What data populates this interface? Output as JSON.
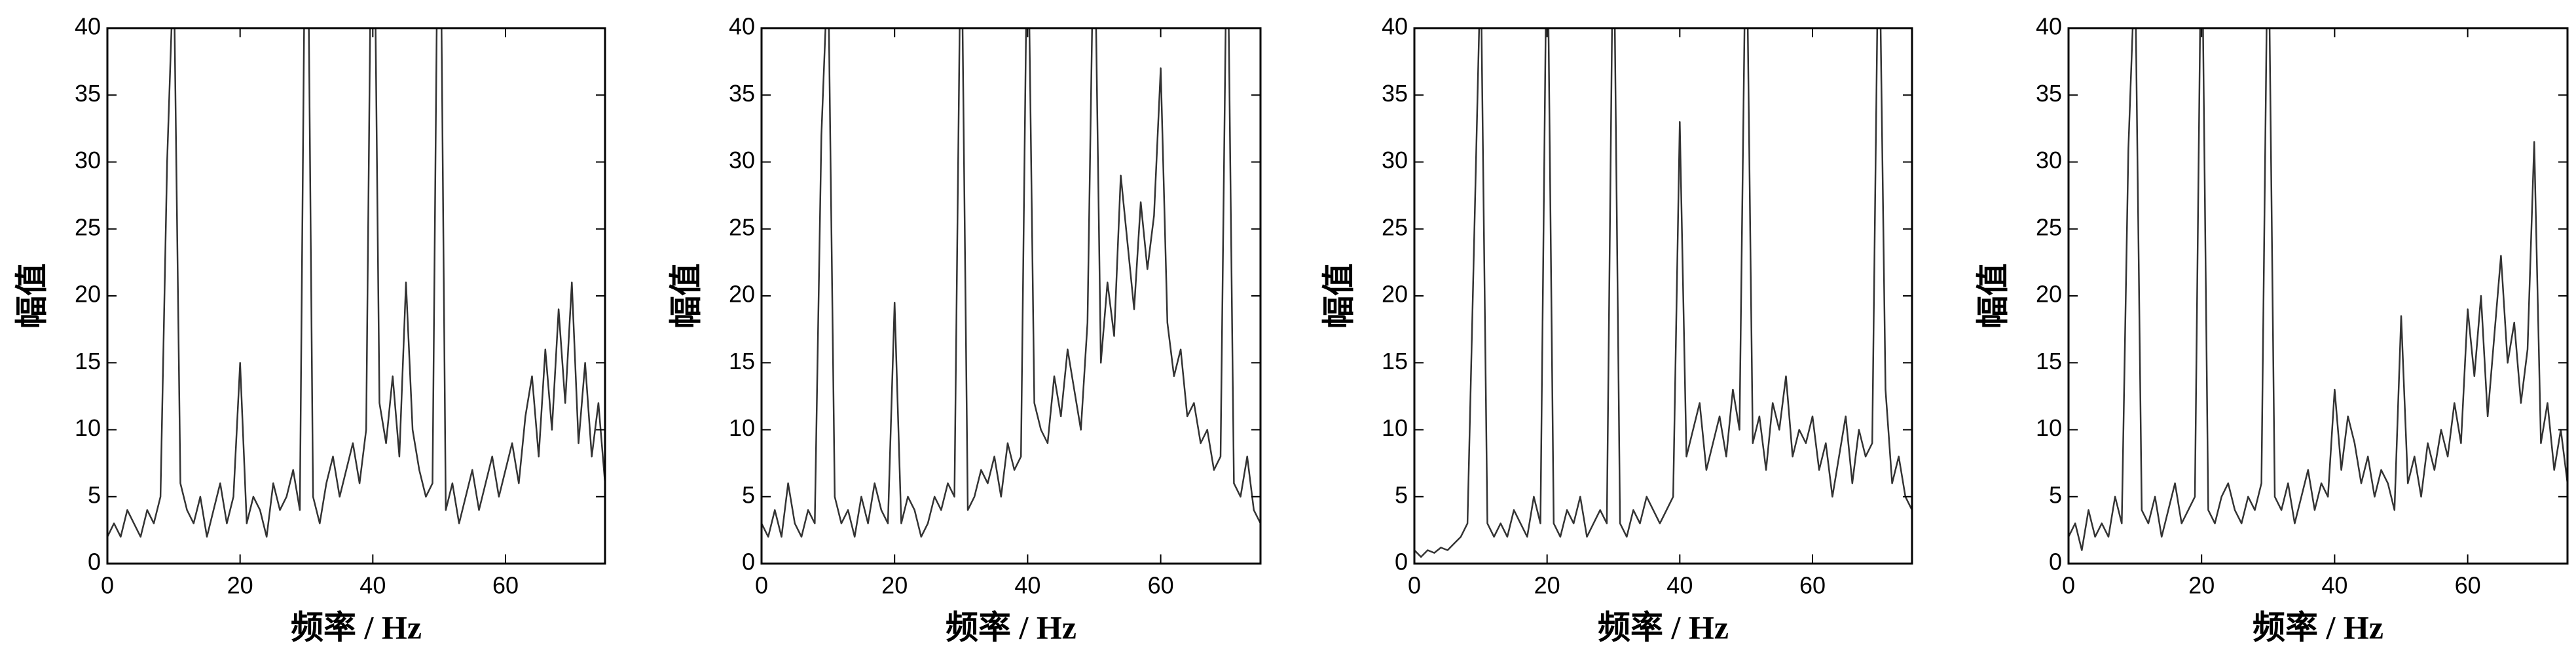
{
  "chart_data": [
    {
      "type": "line",
      "xlabel": "频率 / Hz",
      "ylabel": "幅值",
      "xlim": [
        0,
        75
      ],
      "ylim": [
        0,
        40
      ],
      "xticks": [
        0,
        20,
        40,
        60
      ],
      "yticks": [
        0,
        5,
        10,
        15,
        20,
        25,
        30,
        35,
        40
      ],
      "x": [
        0,
        1,
        2,
        3,
        4,
        5,
        6,
        7,
        8,
        9,
        10,
        11,
        12,
        13,
        14,
        15,
        16,
        17,
        18,
        19,
        20,
        21,
        22,
        23,
        24,
        25,
        26,
        27,
        28,
        29,
        30,
        31,
        32,
        33,
        34,
        35,
        36,
        37,
        38,
        39,
        40,
        41,
        42,
        43,
        44,
        45,
        46,
        47,
        48,
        49,
        50,
        51,
        52,
        53,
        54,
        55,
        56,
        57,
        58,
        59,
        60,
        61,
        62,
        63,
        64,
        65,
        66,
        67,
        68,
        69,
        70,
        71,
        72,
        73,
        74,
        75
      ],
      "series": [
        {
          "color": "#333333",
          "values": [
            2,
            3,
            2,
            4,
            3,
            2,
            4,
            3,
            5,
            30,
            45,
            6,
            4,
            3,
            5,
            2,
            4,
            6,
            3,
            5,
            15,
            3,
            5,
            4,
            2,
            6,
            4,
            5,
            7,
            4,
            60,
            5,
            3,
            6,
            8,
            5,
            7,
            9,
            6,
            10,
            60,
            12,
            9,
            14,
            8,
            21,
            10,
            7,
            5,
            6,
            60,
            4,
            6,
            3,
            5,
            7,
            4,
            6,
            8,
            5,
            7,
            9,
            6,
            11,
            14,
            8,
            16,
            10,
            19,
            12,
            21,
            9,
            15,
            8,
            12,
            6
          ]
        }
      ]
    },
    {
      "type": "line",
      "xlabel": "频率 / Hz",
      "ylabel": "幅值",
      "xlim": [
        0,
        75
      ],
      "ylim": [
        0,
        40
      ],
      "xticks": [
        0,
        20,
        40,
        60
      ],
      "yticks": [
        0,
        5,
        10,
        15,
        20,
        25,
        30,
        35,
        40
      ],
      "x": [
        0,
        1,
        2,
        3,
        4,
        5,
        6,
        7,
        8,
        9,
        10,
        11,
        12,
        13,
        14,
        15,
        16,
        17,
        18,
        19,
        20,
        21,
        22,
        23,
        24,
        25,
        26,
        27,
        28,
        29,
        30,
        31,
        32,
        33,
        34,
        35,
        36,
        37,
        38,
        39,
        40,
        41,
        42,
        43,
        44,
        45,
        46,
        47,
        48,
        49,
        50,
        51,
        52,
        53,
        54,
        55,
        56,
        57,
        58,
        59,
        60,
        61,
        62,
        63,
        64,
        65,
        66,
        67,
        68,
        69,
        70,
        71,
        72,
        73,
        74,
        75
      ],
      "series": [
        {
          "color": "#333333",
          "values": [
            3,
            2,
            4,
            2,
            6,
            3,
            2,
            4,
            3,
            32,
            45,
            5,
            3,
            4,
            2,
            5,
            3,
            6,
            4,
            3,
            19.5,
            3,
            5,
            4,
            2,
            3,
            5,
            4,
            6,
            5,
            50,
            4,
            5,
            7,
            6,
            8,
            5,
            9,
            7,
            8,
            50,
            12,
            10,
            9,
            14,
            11,
            16,
            13,
            10,
            18,
            50,
            15,
            21,
            17,
            29,
            24,
            19,
            27,
            22,
            26,
            37,
            18,
            14,
            16,
            11,
            12,
            9,
            10,
            7,
            8,
            50,
            6,
            5,
            8,
            4,
            3
          ]
        }
      ]
    },
    {
      "type": "line",
      "xlabel": "频率 / Hz",
      "ylabel": "幅值",
      "xlim": [
        0,
        75
      ],
      "ylim": [
        0,
        40
      ],
      "xticks": [
        0,
        20,
        40,
        60
      ],
      "yticks": [
        0,
        5,
        10,
        15,
        20,
        25,
        30,
        35,
        40
      ],
      "x": [
        0,
        1,
        2,
        3,
        4,
        5,
        6,
        7,
        8,
        9,
        10,
        11,
        12,
        13,
        14,
        15,
        16,
        17,
        18,
        19,
        20,
        21,
        22,
        23,
        24,
        25,
        26,
        27,
        28,
        29,
        30,
        31,
        32,
        33,
        34,
        35,
        36,
        37,
        38,
        39,
        40,
        41,
        42,
        43,
        44,
        45,
        46,
        47,
        48,
        49,
        50,
        51,
        52,
        53,
        54,
        55,
        56,
        57,
        58,
        59,
        60,
        61,
        62,
        63,
        64,
        65,
        66,
        67,
        68,
        69,
        70,
        71,
        72,
        73,
        74,
        75
      ],
      "series": [
        {
          "color": "#333333",
          "values": [
            1,
            0.5,
            1,
            0.8,
            1.2,
            1,
            1.5,
            2,
            3,
            24,
            45,
            3,
            2,
            3,
            2,
            4,
            3,
            2,
            5,
            3,
            50,
            3,
            2,
            4,
            3,
            5,
            2,
            3,
            4,
            3,
            50,
            3,
            2,
            4,
            3,
            5,
            4,
            3,
            4,
            5,
            33,
            8,
            10,
            12,
            7,
            9,
            11,
            8,
            13,
            10,
            50,
            9,
            11,
            7,
            12,
            10,
            14,
            8,
            10,
            9,
            11,
            7,
            9,
            5,
            8,
            11,
            6,
            10,
            8,
            9,
            50,
            13,
            6,
            8,
            5,
            4
          ]
        }
      ]
    },
    {
      "type": "line",
      "xlabel": "频率 / Hz",
      "ylabel": "幅值",
      "xlim": [
        0,
        75
      ],
      "ylim": [
        0,
        40
      ],
      "xticks": [
        0,
        20,
        40,
        60
      ],
      "yticks": [
        0,
        5,
        10,
        15,
        20,
        25,
        30,
        35,
        40
      ],
      "x": [
        0,
        1,
        2,
        3,
        4,
        5,
        6,
        7,
        8,
        9,
        10,
        11,
        12,
        13,
        14,
        15,
        16,
        17,
        18,
        19,
        20,
        21,
        22,
        23,
        24,
        25,
        26,
        27,
        28,
        29,
        30,
        31,
        32,
        33,
        34,
        35,
        36,
        37,
        38,
        39,
        40,
        41,
        42,
        43,
        44,
        45,
        46,
        47,
        48,
        49,
        50,
        51,
        52,
        53,
        54,
        55,
        56,
        57,
        58,
        59,
        60,
        61,
        62,
        63,
        64,
        65,
        66,
        67,
        68,
        69,
        70,
        71,
        72,
        73,
        74,
        75
      ],
      "series": [
        {
          "color": "#333333",
          "values": [
            2,
            3,
            1,
            4,
            2,
            3,
            2,
            5,
            3,
            31,
            45,
            4,
            3,
            5,
            2,
            4,
            6,
            3,
            4,
            5,
            50,
            4,
            3,
            5,
            6,
            4,
            3,
            5,
            4,
            6,
            50,
            5,
            4,
            6,
            3,
            5,
            7,
            4,
            6,
            5,
            13,
            7,
            11,
            9,
            6,
            8,
            5,
            7,
            6,
            4,
            18.5,
            6,
            8,
            5,
            9,
            7,
            10,
            8,
            12,
            9,
            19,
            14,
            20,
            11,
            17,
            23,
            15,
            18,
            12,
            16,
            31.5,
            9,
            12,
            7,
            10,
            6
          ]
        }
      ]
    }
  ]
}
